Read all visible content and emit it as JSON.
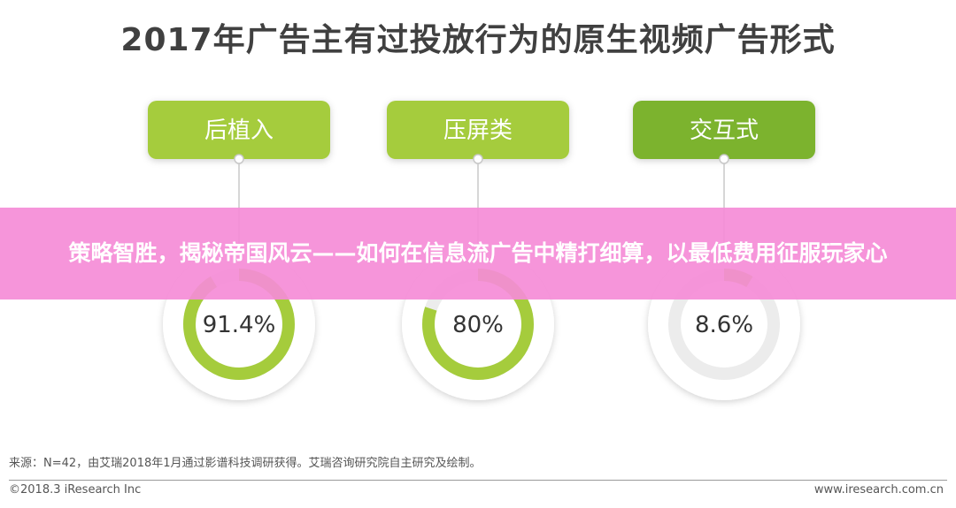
{
  "title": "2017年广告主有过投放行为的原生视频广告形式",
  "chart_data": {
    "type": "donut",
    "categories": [
      "后植入",
      "压屏类",
      "交互式"
    ],
    "values": [
      91.4,
      80,
      8.6
    ],
    "value_labels": [
      "91.4%",
      "80%",
      "8.6%"
    ],
    "unit": "%",
    "colors": {
      "ring": "#a5cc3c",
      "track": "#ececec",
      "box_light": "#a5cc3c",
      "box_dark": "#7bb32e"
    }
  },
  "overlay": {
    "text": "策略智胜，揭秘帝国风云——如何在信息流广告中精打细算，以最低费用征服玩家心"
  },
  "footer": {
    "source": "来源：N=42，由艾瑞2018年1月通过影谱科技调研获得。艾瑞咨询研究院自主研究及绘制。",
    "copyright": "©2018.3 iResearch Inc",
    "website": "www.iresearch.com.cn"
  }
}
